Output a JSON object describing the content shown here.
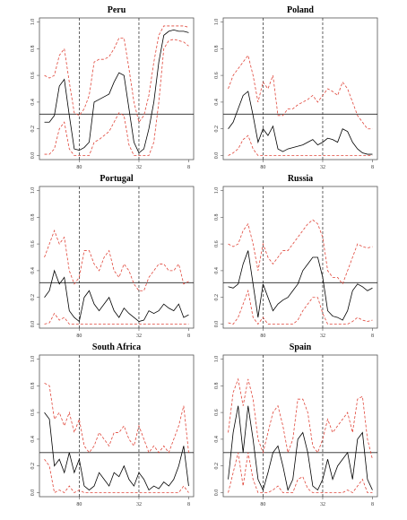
{
  "chart_data": [
    {
      "type": "line",
      "title": "Peru",
      "x": [
        0,
        1,
        2,
        3,
        4,
        5,
        6,
        7,
        8,
        9,
        10,
        11,
        12,
        13,
        14,
        15,
        16,
        17,
        18,
        19,
        20,
        21,
        22,
        23,
        24,
        25,
        26,
        27,
        28,
        29
      ],
      "xlim": [
        -1,
        30
      ],
      "xticks": [
        {
          "value": 7,
          "label": "80"
        },
        {
          "value": 19,
          "label": "32"
        },
        {
          "value": 29,
          "label": "8"
        }
      ],
      "ylim": [
        -0.03,
        1.03
      ],
      "yticks": [
        {
          "value": 0,
          "label": "0.0"
        },
        0.2,
        0.4,
        0.6,
        0.8,
        {
          "value": 1,
          "label": "1.0"
        }
      ],
      "hline": 0.31,
      "series": [
        {
          "color": "#000000",
          "values": [
            0.25,
            0.25,
            0.3,
            0.52,
            0.57,
            0.3,
            0.05,
            0.04,
            0.06,
            0.1,
            0.4,
            0.42,
            0.44,
            0.46,
            0.55,
            0.62,
            0.6,
            0.35,
            0.1,
            0.02,
            0.05,
            0.2,
            0.4,
            0.7,
            0.9,
            0.93,
            0.94,
            0.93,
            0.93,
            0.92
          ]
        },
        {
          "color": "#e0463a",
          "dashed": true,
          "values": [
            0.6,
            0.58,
            0.6,
            0.75,
            0.8,
            0.55,
            0.32,
            0.3,
            0.35,
            0.45,
            0.7,
            0.72,
            0.72,
            0.74,
            0.8,
            0.88,
            0.88,
            0.65,
            0.4,
            0.25,
            0.3,
            0.45,
            0.7,
            0.9,
            0.97,
            0.97,
            0.97,
            0.97,
            0.97,
            0.96
          ]
        },
        {
          "color": "#e0463a",
          "dashed": true,
          "values": [
            0.01,
            0.01,
            0.05,
            0.2,
            0.25,
            0.05,
            0,
            0,
            0,
            0,
            0.1,
            0.12,
            0.15,
            0.18,
            0.25,
            0.32,
            0.3,
            0.08,
            0,
            0,
            0,
            0,
            0.1,
            0.4,
            0.8,
            0.86,
            0.87,
            0.86,
            0.85,
            0.82
          ]
        }
      ]
    },
    {
      "type": "line",
      "title": "Poland",
      "x": [
        0,
        1,
        2,
        3,
        4,
        5,
        6,
        7,
        8,
        9,
        10,
        11,
        12,
        13,
        14,
        15,
        16,
        17,
        18,
        19,
        20,
        21,
        22,
        23,
        24,
        25,
        26,
        27,
        28,
        29
      ],
      "xlim": [
        -1,
        30
      ],
      "xticks": [
        {
          "value": 7,
          "label": "80"
        },
        {
          "value": 19,
          "label": "32"
        },
        {
          "value": 29,
          "label": "8"
        }
      ],
      "ylim": [
        -0.03,
        1.03
      ],
      "yticks": [
        {
          "value": 0,
          "label": "0.0"
        },
        0.2,
        0.4,
        0.6,
        0.8,
        {
          "value": 1,
          "label": "1.0"
        }
      ],
      "hline": 0.31,
      "series": [
        {
          "color": "#000000",
          "values": [
            0.2,
            0.25,
            0.35,
            0.45,
            0.48,
            0.3,
            0.1,
            0.2,
            0.15,
            0.22,
            0.05,
            0.03,
            0.05,
            0.06,
            0.07,
            0.08,
            0.1,
            0.12,
            0.08,
            0.1,
            0.13,
            0.12,
            0.1,
            0.2,
            0.18,
            0.1,
            0.05,
            0.02,
            0.01,
            0.01
          ]
        },
        {
          "color": "#e0463a",
          "dashed": true,
          "values": [
            0.5,
            0.6,
            0.65,
            0.7,
            0.75,
            0.6,
            0.4,
            0.55,
            0.5,
            0.6,
            0.3,
            0.3,
            0.35,
            0.35,
            0.38,
            0.4,
            0.42,
            0.45,
            0.4,
            0.45,
            0.5,
            0.48,
            0.45,
            0.55,
            0.5,
            0.4,
            0.3,
            0.25,
            0.2,
            0.2
          ]
        },
        {
          "color": "#e0463a",
          "dashed": true,
          "values": [
            0,
            0.02,
            0.05,
            0.12,
            0.15,
            0.05,
            0,
            0,
            0,
            0,
            0,
            0,
            0,
            0,
            0,
            0,
            0,
            0,
            0,
            0,
            0,
            0,
            0,
            0,
            0,
            0,
            0,
            0,
            0,
            0
          ]
        }
      ]
    },
    {
      "type": "line",
      "title": "Portugal",
      "x": [
        0,
        1,
        2,
        3,
        4,
        5,
        6,
        7,
        8,
        9,
        10,
        11,
        12,
        13,
        14,
        15,
        16,
        17,
        18,
        19,
        20,
        21,
        22,
        23,
        24,
        25,
        26,
        27,
        28,
        29
      ],
      "xlim": [
        -1,
        30
      ],
      "xticks": [
        {
          "value": 7,
          "label": "80"
        },
        {
          "value": 19,
          "label": "32"
        },
        {
          "value": 29,
          "label": "8"
        }
      ],
      "ylim": [
        -0.03,
        1.03
      ],
      "yticks": [
        {
          "value": 0,
          "label": "0.0"
        },
        0.2,
        0.4,
        0.6,
        0.8,
        {
          "value": 1,
          "label": "1.0"
        }
      ],
      "hline": 0.31,
      "series": [
        {
          "color": "#000000",
          "values": [
            0.2,
            0.25,
            0.4,
            0.3,
            0.35,
            0.1,
            0.05,
            0.02,
            0.2,
            0.25,
            0.15,
            0.1,
            0.15,
            0.2,
            0.1,
            0.05,
            0.12,
            0.08,
            0.05,
            0.02,
            0.03,
            0.1,
            0.08,
            0.1,
            0.15,
            0.12,
            0.1,
            0.15,
            0.05,
            0.07
          ]
        },
        {
          "color": "#e0463a",
          "dashed": true,
          "values": [
            0.5,
            0.6,
            0.7,
            0.6,
            0.65,
            0.4,
            0.3,
            0.35,
            0.55,
            0.55,
            0.45,
            0.4,
            0.5,
            0.55,
            0.4,
            0.35,
            0.45,
            0.4,
            0.3,
            0.25,
            0.25,
            0.35,
            0.4,
            0.45,
            0.45,
            0.4,
            0.4,
            0.45,
            0.3,
            0.32
          ]
        },
        {
          "color": "#e0463a",
          "dashed": true,
          "values": [
            0,
            0.01,
            0.08,
            0.03,
            0.05,
            0,
            0,
            0,
            0,
            0,
            0,
            0,
            0,
            0,
            0,
            0,
            0,
            0,
            0,
            0,
            0,
            0,
            0,
            0,
            0,
            0,
            0,
            0,
            0,
            0
          ]
        }
      ]
    },
    {
      "type": "line",
      "title": "Russia",
      "x": [
        0,
        1,
        2,
        3,
        4,
        5,
        6,
        7,
        8,
        9,
        10,
        11,
        12,
        13,
        14,
        15,
        16,
        17,
        18,
        19,
        20,
        21,
        22,
        23,
        24,
        25,
        26,
        27,
        28,
        29
      ],
      "xlim": [
        -1,
        30
      ],
      "xticks": [
        {
          "value": 7,
          "label": "80"
        },
        {
          "value": 19,
          "label": "32"
        },
        {
          "value": 29,
          "label": "8"
        }
      ],
      "ylim": [
        -0.03,
        1.03
      ],
      "yticks": [
        {
          "value": 0,
          "label": "0.0"
        },
        0.2,
        0.4,
        0.6,
        0.8,
        {
          "value": 1,
          "label": "1.0"
        }
      ],
      "hline": 0.31,
      "series": [
        {
          "color": "#000000",
          "values": [
            0.28,
            0.27,
            0.3,
            0.45,
            0.55,
            0.3,
            0.05,
            0.3,
            0.2,
            0.1,
            0.15,
            0.18,
            0.2,
            0.25,
            0.3,
            0.4,
            0.45,
            0.5,
            0.5,
            0.35,
            0.1,
            0.06,
            0.05,
            0.03,
            0.1,
            0.25,
            0.3,
            0.28,
            0.25,
            0.27
          ]
        },
        {
          "color": "#e0463a",
          "dashed": true,
          "values": [
            0.6,
            0.58,
            0.6,
            0.7,
            0.75,
            0.6,
            0.4,
            0.6,
            0.5,
            0.45,
            0.5,
            0.55,
            0.55,
            0.6,
            0.65,
            0.7,
            0.75,
            0.78,
            0.75,
            0.65,
            0.4,
            0.35,
            0.35,
            0.3,
            0.4,
            0.5,
            0.6,
            0.58,
            0.57,
            0.58
          ]
        },
        {
          "color": "#e0463a",
          "dashed": true,
          "values": [
            0.01,
            0,
            0.05,
            0.15,
            0.25,
            0.05,
            0,
            0.05,
            0,
            0,
            0,
            0,
            0,
            0,
            0.03,
            0.1,
            0.15,
            0.2,
            0.2,
            0.08,
            0,
            0,
            0,
            0,
            0,
            0.02,
            0.05,
            0.03,
            0.02,
            0.03
          ]
        }
      ]
    },
    {
      "type": "line",
      "title": "South Africa",
      "x": [
        0,
        1,
        2,
        3,
        4,
        5,
        6,
        7,
        8,
        9,
        10,
        11,
        12,
        13,
        14,
        15,
        16,
        17,
        18,
        19,
        20,
        21,
        22,
        23,
        24,
        25,
        26,
        27,
        28,
        29
      ],
      "xlim": [
        -1,
        30
      ],
      "xticks": [
        {
          "value": 7,
          "label": "80"
        },
        {
          "value": 19,
          "label": "32"
        },
        {
          "value": 29,
          "label": "8"
        }
      ],
      "ylim": [
        -0.03,
        1.03
      ],
      "yticks": [
        {
          "value": 0,
          "label": "0.0"
        },
        0.2,
        0.4,
        0.6,
        0.8,
        {
          "value": 1,
          "label": "1.0"
        }
      ],
      "hline": 0.3,
      "series": [
        {
          "color": "#000000",
          "values": [
            0.6,
            0.55,
            0.2,
            0.25,
            0.15,
            0.3,
            0.15,
            0.25,
            0.05,
            0.02,
            0.05,
            0.15,
            0.1,
            0.05,
            0.15,
            0.12,
            0.2,
            0.1,
            0.05,
            0.15,
            0.1,
            0.02,
            0.05,
            0.03,
            0.08,
            0.05,
            0.1,
            0.2,
            0.35,
            0.05
          ]
        },
        {
          "color": "#e0463a",
          "dashed": true,
          "values": [
            0.82,
            0.8,
            0.55,
            0.6,
            0.5,
            0.6,
            0.45,
            0.55,
            0.35,
            0.3,
            0.35,
            0.45,
            0.4,
            0.35,
            0.45,
            0.45,
            0.5,
            0.4,
            0.35,
            0.5,
            0.4,
            0.3,
            0.35,
            0.3,
            0.35,
            0.3,
            0.4,
            0.5,
            0.65,
            0.3
          ]
        },
        {
          "color": "#e0463a",
          "dashed": true,
          "values": [
            0.25,
            0.2,
            0,
            0.02,
            0,
            0.05,
            0,
            0.02,
            0,
            0,
            0,
            0,
            0,
            0,
            0,
            0,
            0,
            0,
            0,
            0,
            0,
            0,
            0,
            0,
            0,
            0,
            0,
            0,
            0.05,
            0
          ]
        }
      ]
    },
    {
      "type": "line",
      "title": "Spain",
      "x": [
        0,
        1,
        2,
        3,
        4,
        5,
        6,
        7,
        8,
        9,
        10,
        11,
        12,
        13,
        14,
        15,
        16,
        17,
        18,
        19,
        20,
        21,
        22,
        23,
        24,
        25,
        26,
        27,
        28,
        29
      ],
      "xlim": [
        -1,
        30
      ],
      "xticks": [
        {
          "value": 7,
          "label": "80"
        },
        {
          "value": 19,
          "label": "32"
        },
        {
          "value": 29,
          "label": "8"
        }
      ],
      "ylim": [
        -0.03,
        1.03
      ],
      "yticks": [
        {
          "value": 0,
          "label": "0.0"
        },
        0.2,
        0.4,
        0.6,
        0.8,
        {
          "value": 1,
          "label": "1.0"
        }
      ],
      "hline": 0.3,
      "series": [
        {
          "color": "#000000",
          "values": [
            0.1,
            0.45,
            0.65,
            0.3,
            0.65,
            0.4,
            0.1,
            0.02,
            0.15,
            0.3,
            0.35,
            0.2,
            0.02,
            0.1,
            0.4,
            0.45,
            0.3,
            0.05,
            0.02,
            0.1,
            0.25,
            0.1,
            0.2,
            0.25,
            0.3,
            0.1,
            0.4,
            0.45,
            0.1,
            0.02
          ]
        },
        {
          "color": "#e0463a",
          "dashed": true,
          "values": [
            0.45,
            0.75,
            0.85,
            0.65,
            0.85,
            0.7,
            0.4,
            0.3,
            0.45,
            0.6,
            0.65,
            0.5,
            0.3,
            0.4,
            0.7,
            0.7,
            0.6,
            0.35,
            0.3,
            0.4,
            0.55,
            0.45,
            0.5,
            0.55,
            0.6,
            0.45,
            0.7,
            0.72,
            0.4,
            0.25
          ]
        },
        {
          "color": "#e0463a",
          "dashed": true,
          "values": [
            0,
            0.15,
            0.3,
            0.05,
            0.3,
            0.1,
            0,
            0,
            0,
            0.02,
            0.05,
            0,
            0,
            0,
            0.1,
            0.12,
            0.03,
            0,
            0,
            0,
            0,
            0,
            0,
            0,
            0.02,
            0,
            0.05,
            0.1,
            0,
            0
          ]
        }
      ]
    }
  ]
}
